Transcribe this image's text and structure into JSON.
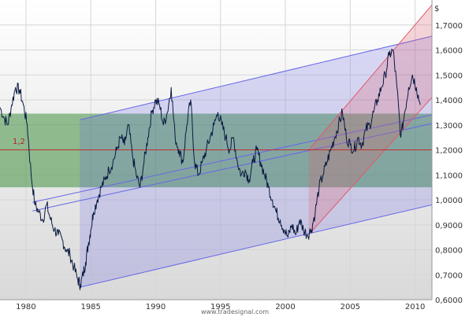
{
  "chart_data": {
    "type": "line",
    "currency_label": "$",
    "watermark": "www.tradesignal.com",
    "reference_label": "1,2",
    "reference_value": 1.2,
    "ylim": [
      0.6,
      1.8
    ],
    "xlim": [
      1978.0,
      2011.3
    ],
    "x_ticks": [
      {
        "v": 1980,
        "label": "1980"
      },
      {
        "v": 1985,
        "label": "1985"
      },
      {
        "v": 1990,
        "label": "1990"
      },
      {
        "v": 1995,
        "label": "1995"
      },
      {
        "v": 2000,
        "label": "2000"
      },
      {
        "v": 2005,
        "label": "2005"
      },
      {
        "v": 2010,
        "label": "2010"
      }
    ],
    "y_ticks": [
      {
        "v": 0.6,
        "label": "0,6000"
      },
      {
        "v": 0.7,
        "label": "0,7000"
      },
      {
        "v": 0.8,
        "label": "0,8000"
      },
      {
        "v": 0.9,
        "label": "0,9000"
      },
      {
        "v": 1.0,
        "label": "1,0000"
      },
      {
        "v": 1.1,
        "label": "1,1000"
      },
      {
        "v": 1.2,
        "label": "1,2000"
      },
      {
        "v": 1.3,
        "label": "1,3000"
      },
      {
        "v": 1.4,
        "label": "1,4000"
      },
      {
        "v": 1.5,
        "label": "1,5000"
      },
      {
        "v": 1.6,
        "label": "1,6000"
      },
      {
        "v": 1.7,
        "label": "1,7000"
      }
    ],
    "grid": true,
    "colors": {
      "band": "#3f8f3f",
      "channel_long": "#6666e6",
      "channel_short": "#e05a6a",
      "price": "#0a1a40",
      "reference": "#c03030"
    },
    "horizontal_band": {
      "y_low": 1.05,
      "y_high": 1.345
    },
    "channel_long": {
      "x_start": 1984.15,
      "x_end": 2011.3,
      "lower": [
        0.65,
        0.98
      ],
      "upper": [
        1.32,
        1.655
      ],
      "inner_lines": [
        [
          0.955,
          1.305
        ],
        [
          0.99,
          1.34
        ]
      ]
    },
    "channel_short": {
      "x_start": 2001.8,
      "x_end": 2011.3,
      "lower": [
        0.86,
        1.41
      ],
      "upper": [
        1.2,
        1.78
      ]
    },
    "series": [
      {
        "x": [
          1978.0,
          1978.3,
          1978.6,
          1978.9,
          1979.2,
          1979.5,
          1979.8,
          1980.1,
          1980.4,
          1980.7,
          1981.0,
          1981.3,
          1981.6,
          1981.9,
          1982.2,
          1982.5,
          1982.8,
          1983.1,
          1983.4,
          1983.7,
          1984.0,
          1984.2,
          1984.4,
          1984.6,
          1984.8,
          1985.0,
          1985.2,
          1985.5,
          1985.8,
          1986.1,
          1986.4,
          1986.7,
          1987.0,
          1987.3,
          1987.6,
          1987.9,
          1988.2,
          1988.5,
          1988.8,
          1989.1,
          1989.4,
          1989.7,
          1990.0,
          1990.3,
          1990.6,
          1990.9,
          1991.2,
          1991.5,
          1991.8,
          1992.1,
          1992.4,
          1992.7,
          1993.0,
          1993.3,
          1993.6,
          1993.9,
          1994.2,
          1994.5,
          1994.8,
          1995.1,
          1995.4,
          1995.7,
          1996.0,
          1996.3,
          1996.6,
          1996.9,
          1997.2,
          1997.5,
          1997.8,
          1998.1,
          1998.4,
          1998.7,
          1999.0,
          1999.3,
          1999.6,
          1999.9,
          2000.2,
          2000.5,
          2000.8,
          2001.1,
          2001.4,
          2001.7,
          2002.0,
          2002.3,
          2002.6,
          2002.9,
          2003.2,
          2003.5,
          2003.8,
          2004.1,
          2004.4,
          2004.7,
          2005.0,
          2005.3,
          2005.6,
          2005.9,
          2006.2,
          2006.5,
          2006.8,
          2007.1,
          2007.4,
          2007.7,
          2008.0,
          2008.3,
          2008.6,
          2008.9,
          2009.2,
          2009.5,
          2009.8,
          2010.1,
          2010.4
        ],
        "values": [
          1.37,
          1.33,
          1.3,
          1.38,
          1.45,
          1.44,
          1.38,
          1.3,
          1.1,
          0.98,
          0.95,
          0.92,
          0.98,
          0.92,
          0.88,
          0.86,
          0.84,
          0.8,
          0.78,
          0.73,
          0.68,
          0.66,
          0.7,
          0.75,
          0.82,
          0.88,
          0.95,
          1.0,
          1.05,
          1.08,
          1.12,
          1.15,
          1.2,
          1.25,
          1.22,
          1.3,
          1.18,
          1.1,
          1.05,
          1.15,
          1.25,
          1.35,
          1.4,
          1.38,
          1.3,
          1.35,
          1.45,
          1.25,
          1.2,
          1.15,
          1.3,
          1.4,
          1.15,
          1.1,
          1.15,
          1.2,
          1.25,
          1.3,
          1.35,
          1.3,
          1.25,
          1.2,
          1.25,
          1.15,
          1.1,
          1.12,
          1.08,
          1.15,
          1.2,
          1.15,
          1.1,
          1.05,
          1.0,
          0.95,
          0.92,
          0.88,
          0.85,
          0.9,
          0.86,
          0.92,
          0.88,
          0.86,
          0.88,
          0.95,
          1.05,
          1.1,
          1.15,
          1.2,
          1.25,
          1.3,
          1.35,
          1.25,
          1.22,
          1.2,
          1.25,
          1.22,
          1.28,
          1.3,
          1.35,
          1.4,
          1.45,
          1.5,
          1.58,
          1.6,
          1.45,
          1.25,
          1.35,
          1.45,
          1.5,
          1.45,
          1.38
        ]
      }
    ]
  }
}
